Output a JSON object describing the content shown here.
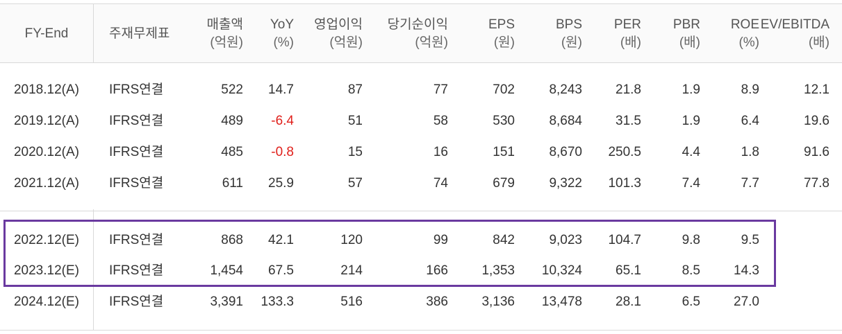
{
  "headers": [
    {
      "key": "period",
      "label": "FY-End",
      "unit": ""
    },
    {
      "key": "basis",
      "label": "주재무제표",
      "unit": ""
    },
    {
      "key": "revenue",
      "label": "매출액",
      "unit": "(억원)"
    },
    {
      "key": "yoy",
      "label": "YoY",
      "unit": "(%)"
    },
    {
      "key": "op_income",
      "label": "영업이익",
      "unit": "(억원)"
    },
    {
      "key": "net_income",
      "label": "당기순이익",
      "unit": "(억원)"
    },
    {
      "key": "eps",
      "label": "EPS",
      "unit": "(원)"
    },
    {
      "key": "bps",
      "label": "BPS",
      "unit": "(원)"
    },
    {
      "key": "per",
      "label": "PER",
      "unit": "(배)"
    },
    {
      "key": "pbr",
      "label": "PBR",
      "unit": "(배)"
    },
    {
      "key": "roe",
      "label": "ROE",
      "unit": "(%)"
    },
    {
      "key": "ev_ebitda",
      "label": "EV/EBITDA",
      "unit": "(배)"
    }
  ],
  "rows": [
    {
      "period": "2018.12(A)",
      "basis": "IFRS연결",
      "revenue": "522",
      "yoy": "14.7",
      "op_income": "87",
      "net_income": "77",
      "eps": "702",
      "bps": "8,243",
      "per": "21.8",
      "pbr": "1.9",
      "roe": "8.9",
      "ev_ebitda": "12.1"
    },
    {
      "period": "2019.12(A)",
      "basis": "IFRS연결",
      "revenue": "489",
      "yoy": "-6.4",
      "op_income": "51",
      "net_income": "58",
      "eps": "530",
      "bps": "8,684",
      "per": "31.5",
      "pbr": "1.9",
      "roe": "6.4",
      "ev_ebitda": "19.6"
    },
    {
      "period": "2020.12(A)",
      "basis": "IFRS연결",
      "revenue": "485",
      "yoy": "-0.8",
      "op_income": "15",
      "net_income": "16",
      "eps": "151",
      "bps": "8,670",
      "per": "250.5",
      "pbr": "4.4",
      "roe": "1.8",
      "ev_ebitda": "91.6"
    },
    {
      "period": "2021.12(A)",
      "basis": "IFRS연결",
      "revenue": "611",
      "yoy": "25.9",
      "op_income": "57",
      "net_income": "74",
      "eps": "679",
      "bps": "9,322",
      "per": "101.3",
      "pbr": "7.4",
      "roe": "7.7",
      "ev_ebitda": "77.8"
    },
    {
      "period": "2022.12(E)",
      "basis": "IFRS연결",
      "revenue": "868",
      "yoy": "42.1",
      "op_income": "120",
      "net_income": "99",
      "eps": "842",
      "bps": "9,023",
      "per": "104.7",
      "pbr": "9.8",
      "roe": "9.5",
      "ev_ebitda": ""
    },
    {
      "period": "2023.12(E)",
      "basis": "IFRS연결",
      "revenue": "1,454",
      "yoy": "67.5",
      "op_income": "214",
      "net_income": "166",
      "eps": "1,353",
      "bps": "10,324",
      "per": "65.1",
      "pbr": "8.5",
      "roe": "14.3",
      "ev_ebitda": ""
    },
    {
      "period": "2024.12(E)",
      "basis": "IFRS연결",
      "revenue": "3,391",
      "yoy": "133.3",
      "op_income": "516",
      "net_income": "386",
      "eps": "3,136",
      "bps": "13,478",
      "per": "28.1",
      "pbr": "6.5",
      "roe": "27.0",
      "ev_ebitda": ""
    }
  ],
  "colors": {
    "negative": "#e0201b",
    "highlight_border": "#6a3aa0",
    "grid": "#d9d9d9",
    "header_bg": "#fafafa"
  }
}
